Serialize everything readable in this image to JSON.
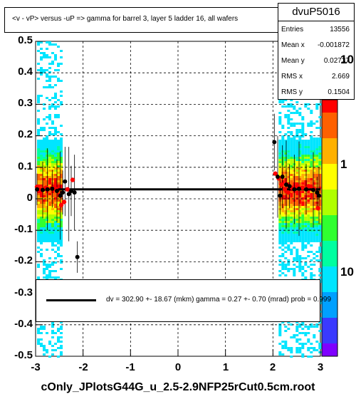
{
  "chart_data": {
    "type": "scatter",
    "title": "<v - vP>       versus  -uP =>  gamma for barrel 3, layer 5 ladder 16, all  wafers",
    "xlim": [
      -3,
      3
    ],
    "ylim": [
      -0.5,
      0.5
    ],
    "x_ticks": [
      "-3",
      "-2",
      "-1",
      "0",
      "1",
      "2",
      "3"
    ],
    "y_ticks": [
      "0.5",
      "0.4",
      "0.3",
      "0.2",
      "0.1",
      "0",
      "-0.1",
      "-0.2",
      "-0.3",
      "-0.4",
      "-0.5"
    ],
    "z_ticks": [
      "10",
      "1",
      "10"
    ],
    "grid": true,
    "series": [
      {
        "marker": "black",
        "points": [
          {
            "x": -2.97,
            "y": 0.03
          },
          {
            "x": -2.85,
            "y": 0.028
          },
          {
            "x": -2.75,
            "y": 0.03
          },
          {
            "x": -2.65,
            "y": 0.032
          },
          {
            "x": -2.55,
            "y": 0.025
          },
          {
            "x": -2.48,
            "y": 0.01
          },
          {
            "x": -2.43,
            "y": 0.02
          },
          {
            "x": -2.38,
            "y": 0.055
          },
          {
            "x": -2.3,
            "y": 0.015
          },
          {
            "x": -2.25,
            "y": 0.025
          },
          {
            "x": -2.18,
            "y": 0.02
          },
          {
            "x": -2.12,
            "y": -0.185
          },
          {
            "x": 2.03,
            "y": 0.18
          },
          {
            "x": 2.1,
            "y": 0.07
          },
          {
            "x": 2.15,
            "y": 0.01
          },
          {
            "x": 2.2,
            "y": 0.07
          },
          {
            "x": 2.28,
            "y": 0.045
          },
          {
            "x": 2.35,
            "y": 0.04
          },
          {
            "x": 2.45,
            "y": 0.03
          },
          {
            "x": 2.55,
            "y": 0.032
          },
          {
            "x": 2.7,
            "y": 0.03
          },
          {
            "x": 2.85,
            "y": 0.028
          },
          {
            "x": 2.93,
            "y": 0.02
          },
          {
            "x": 2.97,
            "y": 0.01
          }
        ]
      },
      {
        "marker": "red",
        "points": [
          {
            "x": -2.97,
            "y": 0.038
          },
          {
            "x": -2.88,
            "y": 0.03
          },
          {
            "x": -2.78,
            "y": 0.035
          },
          {
            "x": -2.66,
            "y": 0.033
          },
          {
            "x": -2.57,
            "y": 0.03
          },
          {
            "x": -2.46,
            "y": -0.02
          },
          {
            "x": -2.4,
            "y": -0.01
          },
          {
            "x": -2.33,
            "y": 0.03
          },
          {
            "x": -2.22,
            "y": 0.06
          },
          {
            "x": 2.05,
            "y": 0.08
          },
          {
            "x": 2.12,
            "y": 0.065
          },
          {
            "x": 2.18,
            "y": 0.045
          },
          {
            "x": 2.25,
            "y": 0.03
          },
          {
            "x": 2.32,
            "y": 0.02
          },
          {
            "x": 2.4,
            "y": 0.035
          },
          {
            "x": 2.52,
            "y": 0.04
          },
          {
            "x": 2.62,
            "y": 0.035
          },
          {
            "x": 2.75,
            "y": 0.04
          },
          {
            "x": 2.86,
            "y": 0.03
          },
          {
            "x": 2.95,
            "y": -0.03
          }
        ]
      }
    ],
    "fit_line": {
      "y": 0.03
    }
  },
  "stats": {
    "title": "dvuP5016",
    "rows": [
      {
        "name": "Entries",
        "value": "13556"
      },
      {
        "name": "Mean x",
        "value": "-0.001872"
      },
      {
        "name": "Mean y",
        "value": "0.02737"
      },
      {
        "name": "RMS x",
        "value": "2.669"
      },
      {
        "name": "RMS y",
        "value": "0.1504"
      }
    ]
  },
  "fit_text": "dv =  302.90 +- 18.67 (mkm) gamma =    0.27 +-  0.70 (mrad) prob = 0.999",
  "footer": "cOnly_JPlotsG44G_u_2.5-2.9NFP25rCut0.5cm.root",
  "colors": {
    "background": "#ffffff",
    "axis": "#000000",
    "red_markers": "#ff0000",
    "black_markers": "#000000",
    "palette": [
      "#7f00ff",
      "#3a3aff",
      "#00a0ff",
      "#00e5ff",
      "#00ffa0",
      "#30ff30",
      "#b0ff00",
      "#ffff00",
      "#ffb000",
      "#ff6000",
      "#ff0000"
    ]
  }
}
